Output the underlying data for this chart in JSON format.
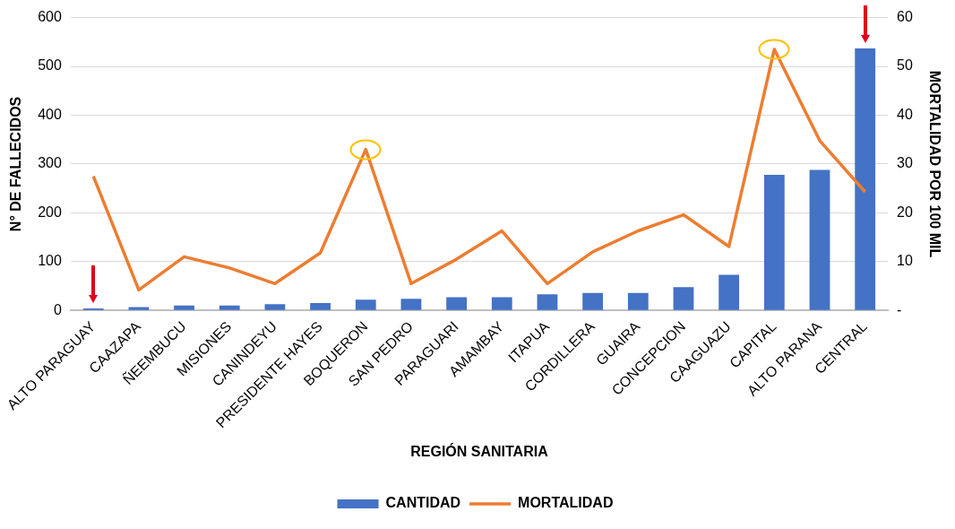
{
  "chart_data": {
    "type": "bar",
    "xlabel": "REGIÓN SANITARIA",
    "ylabel": "N° DE FALLECIDOS",
    "y2label": "MORTALIDAD POR 100 MIL",
    "categories": [
      "ALTO PARAGUAY",
      "CAAZAPA",
      "ÑEEMBUCU",
      "MISIONES",
      "CANINDEYU",
      "PRESIDENTE HAYES",
      "BOQUERON",
      "SAN PEDRO",
      "PARAGUARI",
      "AMAMBAY",
      "ITAPUA",
      "CORDILLERA",
      "GUAIRA",
      "CONCEPCION",
      "CAAGUAZU",
      "CAPITAL",
      "ALTO PARANA",
      "CENTRAL"
    ],
    "series": [
      {
        "name": "CANTIDAD",
        "color": "#4472c4",
        "values": [
          4,
          7,
          10,
          10,
          13,
          15,
          22,
          24,
          27,
          27,
          33,
          36,
          36,
          48,
          73,
          278,
          288,
          537
        ]
      },
      {
        "name": "MORTALIDAD",
        "type": "line",
        "axis": "y2",
        "color": "#ed7d31",
        "values": [
          27.5,
          4.2,
          11,
          8.7,
          5.5,
          11.8,
          33,
          5.5,
          10.5,
          16.3,
          5.5,
          12,
          16.3,
          19.6,
          13.1,
          53.5,
          34.8,
          24.3
        ]
      }
    ],
    "ylim": [
      0,
      600
    ],
    "yticks": [
      0,
      100,
      200,
      300,
      400,
      500,
      600
    ],
    "y2lim": [
      0,
      60
    ],
    "y2ticks": [
      {
        "value": 0,
        "label": "-"
      },
      10,
      20,
      30,
      40,
      50,
      60
    ],
    "grid": "y",
    "legend": "bottom",
    "marker": "none",
    "line_style": "solid"
  }
}
